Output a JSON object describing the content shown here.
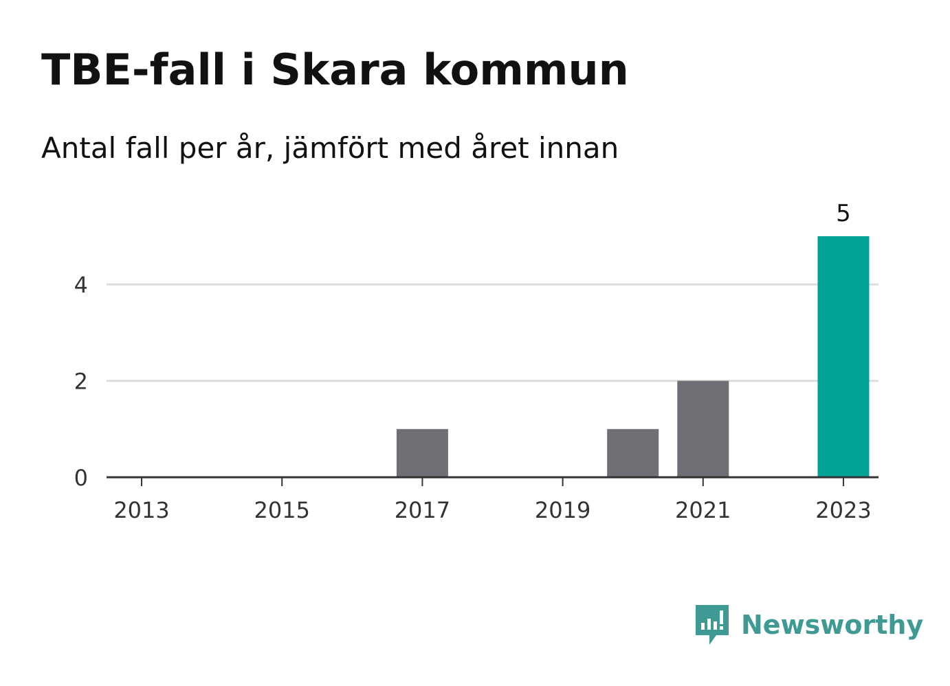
{
  "colors": {
    "default_bar": "#716f76",
    "highlight_bar": "#00a497",
    "gridline": "#dddddd",
    "axis": "#333333",
    "brand": "#3f9a94"
  },
  "brand": {
    "icon": "newsworthy-logo-icon",
    "name": "Newsworthy"
  },
  "chart_data": {
    "type": "bar",
    "title": "TBE-fall i Skara kommun",
    "subtitle": "Antal fall per år, jämfört med året innan",
    "xlabel": "",
    "ylabel": "",
    "categories": [
      "2013",
      "2014",
      "2015",
      "2016",
      "2017",
      "2018",
      "2019",
      "2020",
      "2021",
      "2022",
      "2023"
    ],
    "values": [
      0,
      0,
      0,
      0,
      1,
      0,
      0,
      1,
      2,
      0,
      5
    ],
    "highlight_category": "2023",
    "data_labels": [
      {
        "category": "2023",
        "text": "5"
      }
    ],
    "x_ticks": [
      "2013",
      "2015",
      "2017",
      "2019",
      "2021",
      "2023"
    ],
    "y_ticks": [
      0,
      2,
      4
    ],
    "ylim": [
      0,
      5
    ],
    "grid": true,
    "legend": "none"
  }
}
